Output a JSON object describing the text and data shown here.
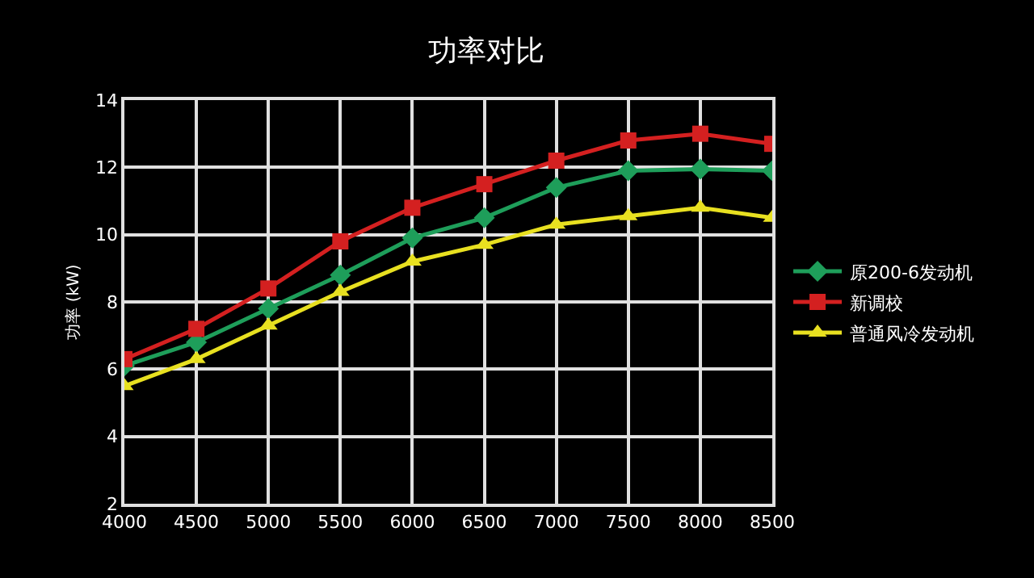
{
  "chart_data": {
    "type": "line",
    "title": "功率对比",
    "ylabel": "功率 (kW)",
    "x": [
      4000,
      4500,
      5000,
      5500,
      6000,
      6500,
      7000,
      7500,
      8000,
      8500
    ],
    "xlim": [
      4000,
      8500
    ],
    "xticks": [
      4000,
      4500,
      5000,
      5500,
      6000,
      6500,
      7000,
      7500,
      8000,
      8500
    ],
    "ylim": [
      2,
      14
    ],
    "yticks": [
      2,
      4,
      6,
      8,
      10,
      12,
      14
    ],
    "grid": true,
    "legend": "right",
    "series": [
      {
        "name": "原200-6发动机",
        "color": "#1e9e5a",
        "marker": "diamond",
        "values": [
          6.1,
          6.8,
          7.8,
          8.8,
          9.9,
          10.5,
          11.4,
          11.9,
          11.95,
          11.9
        ]
      },
      {
        "name": "新调校",
        "color": "#d42020",
        "marker": "square",
        "values": [
          6.3,
          7.2,
          8.4,
          9.8,
          10.8,
          11.5,
          12.2,
          12.8,
          13.0,
          12.7
        ]
      },
      {
        "name": "普通风冷发动机",
        "color": "#e8e020",
        "marker": "triangle",
        "values": [
          5.5,
          6.3,
          7.3,
          8.3,
          9.2,
          9.7,
          10.3,
          10.55,
          10.8,
          10.5
        ]
      }
    ]
  }
}
